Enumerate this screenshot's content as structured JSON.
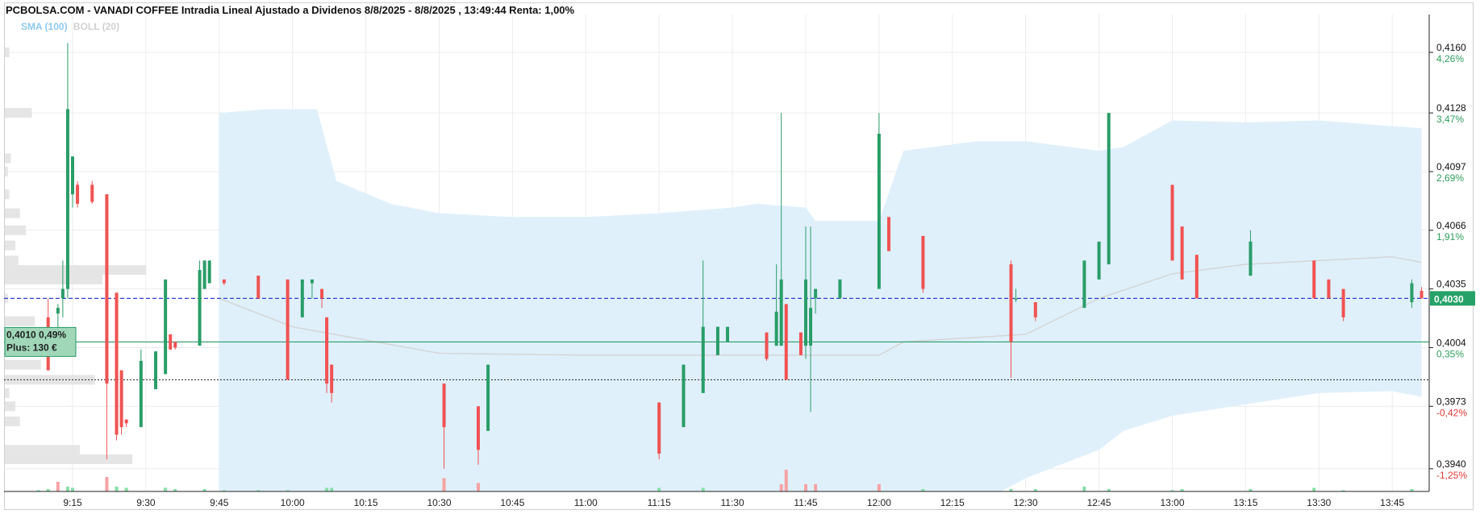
{
  "header": {
    "title": "PCBOLSA.COM - VANADI COFFEE Intradia Lineal Ajustado a Dividenos 8/8/2025 - 8/8/2025 , 13:49:44 Renta: 1,00%",
    "legend_sma": "SMA (100)",
    "legend_boll": "BOLL (20)"
  },
  "chart_data": {
    "type": "candlestick",
    "title": "PCBOLSA.COM - VANADI COFFEE Intradia Lineal Ajustado a Dividenos 8/8/2025 - 8/8/2025 , 13:49:44 Renta: 1,00%",
    "xlabel": "",
    "ylabel": "",
    "ylim": [
      0.3928,
      0.418
    ],
    "x_ticks": [
      "9:15",
      "9:30",
      "9:45",
      "10:00",
      "10:15",
      "10:30",
      "10:45",
      "11:00",
      "11:15",
      "11:30",
      "11:45",
      "12:00",
      "12:15",
      "12:30",
      "12:45",
      "13:00",
      "13:15",
      "13:30",
      "13:45"
    ],
    "y_ticks": [
      {
        "price": "0,4160",
        "pct": "4,26%",
        "dir": "up",
        "value": 0.416
      },
      {
        "price": "0,4128",
        "pct": "3,47%",
        "dir": "up",
        "value": 0.4128
      },
      {
        "price": "0,4097",
        "pct": "2,69%",
        "dir": "up",
        "value": 0.4097
      },
      {
        "price": "0,4066",
        "pct": "1,91%",
        "dir": "up",
        "value": 0.4066
      },
      {
        "price": "0,4035",
        "pct": "",
        "dir": "up",
        "value": 0.4035
      },
      {
        "price": "0,4004",
        "pct": "0,35%",
        "dir": "up",
        "value": 0.4004
      },
      {
        "price": "0,3973",
        "pct": "-0,42%",
        "dir": "down",
        "value": 0.3973
      },
      {
        "price": "0,3940",
        "pct": "-1,25%",
        "dir": "down",
        "value": 0.394
      }
    ],
    "last_price": {
      "label": "0,4030",
      "value": 0.403,
      "color": "#26a269"
    },
    "reference_line": {
      "value": 0.4007
    },
    "dotted_line": {
      "value": 0.3987
    },
    "position_box": {
      "line1": "0,4010  0,49%",
      "line2": "Plus: 130 €"
    },
    "candles": [
      {
        "t": "09:10",
        "o": 0.402,
        "h": 0.403,
        "l": 0.3992,
        "c": 0.3992
      },
      {
        "t": "09:12",
        "o": 0.4022,
        "h": 0.4027,
        "l": 0.401,
        "c": 0.4025
      },
      {
        "t": "09:13",
        "o": 0.403,
        "h": 0.405,
        "l": 0.402,
        "c": 0.4035
      },
      {
        "t": "09:14",
        "o": 0.4035,
        "h": 0.4165,
        "l": 0.403,
        "c": 0.413
      },
      {
        "t": "09:15",
        "o": 0.4085,
        "h": 0.4105,
        "l": 0.4078,
        "c": 0.4105
      },
      {
        "t": "09:16",
        "o": 0.409,
        "h": 0.4092,
        "l": 0.4078,
        "c": 0.408
      },
      {
        "t": "09:19",
        "o": 0.409,
        "h": 0.4092,
        "l": 0.408,
        "c": 0.4081
      },
      {
        "t": "09:22",
        "o": 0.4085,
        "h": 0.4085,
        "l": 0.3945,
        "c": 0.3985
      },
      {
        "t": "09:24",
        "o": 0.4033,
        "h": 0.4033,
        "l": 0.3955,
        "c": 0.3958
      },
      {
        "t": "09:25",
        "o": 0.3992,
        "h": 0.3992,
        "l": 0.3958,
        "c": 0.3962
      },
      {
        "t": "09:26",
        "o": 0.3966,
        "h": 0.3966,
        "l": 0.3962,
        "c": 0.3964
      },
      {
        "t": "09:29",
        "o": 0.3962,
        "h": 0.4003,
        "l": 0.3962,
        "c": 0.3997
      },
      {
        "t": "09:32",
        "o": 0.3982,
        "h": 0.4002,
        "l": 0.3982,
        "c": 0.4002
      },
      {
        "t": "09:34",
        "o": 0.399,
        "h": 0.404,
        "l": 0.399,
        "c": 0.404
      },
      {
        "t": "09:35",
        "o": 0.4011,
        "h": 0.4011,
        "l": 0.4003,
        "c": 0.4003
      },
      {
        "t": "09:36",
        "o": 0.4007,
        "h": 0.4007,
        "l": 0.4003,
        "c": 0.4004
      },
      {
        "t": "09:41",
        "o": 0.4005,
        "h": 0.405,
        "l": 0.4005,
        "c": 0.4045
      },
      {
        "t": "09:42",
        "o": 0.4035,
        "h": 0.405,
        "l": 0.4035,
        "c": 0.405
      },
      {
        "t": "09:43",
        "o": 0.4038,
        "h": 0.405,
        "l": 0.4038,
        "c": 0.405
      },
      {
        "t": "09:46",
        "o": 0.404,
        "h": 0.404,
        "l": 0.4037,
        "c": 0.4038
      },
      {
        "t": "09:53",
        "o": 0.4042,
        "h": 0.4042,
        "l": 0.403,
        "c": 0.403
      },
      {
        "t": "09:59",
        "o": 0.404,
        "h": 0.404,
        "l": 0.3987,
        "c": 0.3987
      },
      {
        "t": "10:02",
        "o": 0.402,
        "h": 0.404,
        "l": 0.402,
        "c": 0.404
      },
      {
        "t": "10:04",
        "o": 0.4038,
        "h": 0.404,
        "l": 0.403,
        "c": 0.404
      },
      {
        "t": "10:06",
        "o": 0.4035,
        "h": 0.4035,
        "l": 0.4025,
        "c": 0.403
      },
      {
        "t": "10:07",
        "o": 0.402,
        "h": 0.402,
        "l": 0.398,
        "c": 0.3985
      },
      {
        "t": "10:08",
        "o": 0.3995,
        "h": 0.3995,
        "l": 0.3975,
        "c": 0.398
      },
      {
        "t": "10:31",
        "o": 0.3985,
        "h": 0.3985,
        "l": 0.394,
        "c": 0.3962
      },
      {
        "t": "10:38",
        "o": 0.3973,
        "h": 0.3973,
        "l": 0.3942,
        "c": 0.395
      },
      {
        "t": "10:40",
        "o": 0.396,
        "h": 0.3995,
        "l": 0.396,
        "c": 0.3995
      },
      {
        "t": "11:15",
        "o": 0.3975,
        "h": 0.3975,
        "l": 0.3945,
        "c": 0.3948
      },
      {
        "t": "11:20",
        "o": 0.3962,
        "h": 0.3995,
        "l": 0.3962,
        "c": 0.3995
      },
      {
        "t": "11:24",
        "o": 0.398,
        "h": 0.405,
        "l": 0.398,
        "c": 0.4015
      },
      {
        "t": "11:27",
        "o": 0.4,
        "h": 0.4015,
        "l": 0.4,
        "c": 0.4015
      },
      {
        "t": "11:29",
        "o": 0.4007,
        "h": 0.4015,
        "l": 0.4007,
        "c": 0.4015
      },
      {
        "t": "11:37",
        "o": 0.4012,
        "h": 0.4012,
        "l": 0.3997,
        "c": 0.3998
      },
      {
        "t": "11:39",
        "o": 0.4005,
        "h": 0.4048,
        "l": 0.4005,
        "c": 0.4023
      },
      {
        "t": "11:40",
        "o": 0.4005,
        "h": 0.4128,
        "l": 0.4005,
        "c": 0.404
      },
      {
        "t": "11:41",
        "o": 0.4027,
        "h": 0.4027,
        "l": 0.3987,
        "c": 0.3987
      },
      {
        "t": "11:44",
        "o": 0.4012,
        "h": 0.4012,
        "l": 0.4,
        "c": 0.4
      },
      {
        "t": "11:45",
        "o": 0.4005,
        "h": 0.4068,
        "l": 0.3998,
        "c": 0.404
      },
      {
        "t": "11:46",
        "o": 0.4005,
        "h": 0.4068,
        "l": 0.397,
        "c": 0.4025
      },
      {
        "t": "11:47",
        "o": 0.403,
        "h": 0.4035,
        "l": 0.4022,
        "c": 0.4035
      },
      {
        "t": "11:52",
        "o": 0.403,
        "h": 0.404,
        "l": 0.403,
        "c": 0.404
      },
      {
        "t": "12:00",
        "o": 0.4035,
        "h": 0.4128,
        "l": 0.4035,
        "c": 0.4117
      },
      {
        "t": "12:02",
        "o": 0.4073,
        "h": 0.4073,
        "l": 0.4055,
        "c": 0.4055
      },
      {
        "t": "12:09",
        "o": 0.4063,
        "h": 0.4063,
        "l": 0.4033,
        "c": 0.4035
      },
      {
        "t": "12:27",
        "o": 0.4048,
        "h": 0.405,
        "l": 0.3988,
        "c": 0.4007
      },
      {
        "t": "12:28",
        "o": 0.403,
        "h": 0.4035,
        "l": 0.4028,
        "c": 0.403
      },
      {
        "t": "12:32",
        "o": 0.4028,
        "h": 0.4028,
        "l": 0.4018,
        "c": 0.402
      },
      {
        "t": "12:42",
        "o": 0.4025,
        "h": 0.405,
        "l": 0.4025,
        "c": 0.405
      },
      {
        "t": "12:45",
        "o": 0.404,
        "h": 0.406,
        "l": 0.404,
        "c": 0.406
      },
      {
        "t": "12:47",
        "o": 0.4048,
        "h": 0.4128,
        "l": 0.4048,
        "c": 0.4128
      },
      {
        "t": "13:00",
        "o": 0.409,
        "h": 0.409,
        "l": 0.405,
        "c": 0.405
      },
      {
        "t": "13:02",
        "o": 0.4068,
        "h": 0.4068,
        "l": 0.404,
        "c": 0.404
      },
      {
        "t": "13:05",
        "o": 0.4053,
        "h": 0.4053,
        "l": 0.403,
        "c": 0.403
      },
      {
        "t": "13:16",
        "o": 0.4042,
        "h": 0.4066,
        "l": 0.4042,
        "c": 0.406
      },
      {
        "t": "13:29",
        "o": 0.405,
        "h": 0.405,
        "l": 0.403,
        "c": 0.403
      },
      {
        "t": "13:32",
        "o": 0.404,
        "h": 0.404,
        "l": 0.403,
        "c": 0.403
      },
      {
        "t": "13:35",
        "o": 0.4035,
        "h": 0.4035,
        "l": 0.4018,
        "c": 0.402
      },
      {
        "t": "13:49",
        "o": 0.4028,
        "h": 0.404,
        "l": 0.4025,
        "c": 0.4038
      },
      {
        "t": "13:51",
        "o": 0.4034,
        "h": 0.4036,
        "l": 0.403,
        "c": 0.403
      }
    ],
    "bollinger": {
      "t": [
        "09:45",
        "09:55",
        "10:05",
        "10:09",
        "10:20",
        "10:30",
        "10:45",
        "11:00",
        "11:15",
        "11:30",
        "11:35",
        "11:45",
        "11:47",
        "12:00",
        "12:05",
        "12:20",
        "12:25",
        "12:30",
        "12:45",
        "12:50",
        "13:00",
        "13:15",
        "13:30",
        "13:45",
        "13:51"
      ],
      "upper": [
        0.4128,
        0.413,
        0.413,
        0.4092,
        0.408,
        0.4075,
        0.4073,
        0.4073,
        0.4075,
        0.4078,
        0.408,
        0.4078,
        0.4071,
        0.4071,
        0.4108,
        0.4113,
        0.4113,
        0.4113,
        0.4108,
        0.411,
        0.4124,
        0.4123,
        0.4124,
        0.4121,
        0.412
      ],
      "lower": [
        0.3928,
        0.3928,
        0.3928,
        0.3928,
        0.3928,
        0.3928,
        0.3928,
        0.3928,
        0.3928,
        0.3928,
        0.3928,
        0.3928,
        0.3928,
        0.3928,
        0.3928,
        0.3928,
        0.3928,
        0.3935,
        0.395,
        0.396,
        0.3968,
        0.3974,
        0.398,
        0.3981,
        0.3978
      ]
    },
    "sma": {
      "t": [
        "09:45",
        "10:00",
        "10:30",
        "11:00",
        "11:30",
        "11:45",
        "12:00",
        "12:05",
        "12:30",
        "12:45",
        "13:00",
        "13:15",
        "13:30",
        "13:45",
        "13:51"
      ],
      "values": [
        0.403,
        0.4015,
        0.4001,
        0.4,
        0.4,
        0.4,
        0.4,
        0.4007,
        0.4011,
        0.403,
        0.4043,
        0.4048,
        0.405,
        0.4052,
        0.4049
      ]
    },
    "volume": [
      {
        "t": "09:08",
        "v": 1
      },
      {
        "t": "09:10",
        "v": 2
      },
      {
        "t": "09:12",
        "v": 8
      },
      {
        "t": "09:14",
        "v": 4
      },
      {
        "t": "09:15",
        "v": 3
      },
      {
        "t": "09:22",
        "v": 12
      },
      {
        "t": "09:24",
        "v": 4
      },
      {
        "t": "09:26",
        "v": 3
      },
      {
        "t": "09:34",
        "v": 3
      },
      {
        "t": "09:36",
        "v": 2
      },
      {
        "t": "09:42",
        "v": 2
      },
      {
        "t": "09:46",
        "v": 1
      },
      {
        "t": "09:53",
        "v": 1
      },
      {
        "t": "09:59",
        "v": 1
      },
      {
        "t": "10:07",
        "v": 3
      },
      {
        "t": "10:08",
        "v": 3
      },
      {
        "t": "10:31",
        "v": 11
      },
      {
        "t": "10:38",
        "v": 7
      },
      {
        "t": "11:15",
        "v": 3
      },
      {
        "t": "11:24",
        "v": 3
      },
      {
        "t": "11:40",
        "v": 6
      },
      {
        "t": "11:41",
        "v": 18
      },
      {
        "t": "11:45",
        "v": 6
      },
      {
        "t": "11:47",
        "v": 6
      },
      {
        "t": "12:00",
        "v": 6
      },
      {
        "t": "12:09",
        "v": 2
      },
      {
        "t": "12:27",
        "v": 2
      },
      {
        "t": "12:32",
        "v": 2
      },
      {
        "t": "12:42",
        "v": 4
      },
      {
        "t": "12:47",
        "v": 2
      },
      {
        "t": "13:00",
        "v": 1
      },
      {
        "t": "13:02",
        "v": 2
      },
      {
        "t": "13:16",
        "v": 2
      },
      {
        "t": "13:29",
        "v": 3
      },
      {
        "t": "13:35",
        "v": 1
      },
      {
        "t": "13:49",
        "v": 2
      }
    ],
    "volume_profile": [
      {
        "p": 0.416,
        "v": 3
      },
      {
        "p": 0.4128,
        "v": 18
      },
      {
        "p": 0.4104,
        "v": 4
      },
      {
        "p": 0.4097,
        "v": 2
      },
      {
        "p": 0.4085,
        "v": 3
      },
      {
        "p": 0.4075,
        "v": 10
      },
      {
        "p": 0.4066,
        "v": 14
      },
      {
        "p": 0.4058,
        "v": 7
      },
      {
        "p": 0.405,
        "v": 9
      },
      {
        "p": 0.4045,
        "v": 94
      },
      {
        "p": 0.404,
        "v": 65
      },
      {
        "p": 0.403,
        "v": 2
      },
      {
        "p": 0.4018,
        "v": 20
      },
      {
        "p": 0.401,
        "v": 36
      },
      {
        "p": 0.3995,
        "v": 24
      },
      {
        "p": 0.3987,
        "v": 60
      },
      {
        "p": 0.398,
        "v": 3
      },
      {
        "p": 0.3973,
        "v": 7
      },
      {
        "p": 0.3965,
        "v": 10
      },
      {
        "p": 0.395,
        "v": 50
      },
      {
        "p": 0.3945,
        "v": 85
      }
    ],
    "colors": {
      "up": "#2a9d68",
      "down": "#f05252",
      "volume_up": "#86e0a8",
      "volume_down": "#f5a3a3",
      "boll_fill": "#dff0fb",
      "sma_line": "#d5d5d5",
      "last_line": "#2f3fd6",
      "ref_line": "#2a9d68"
    },
    "grid": true,
    "legend": "top-left"
  }
}
